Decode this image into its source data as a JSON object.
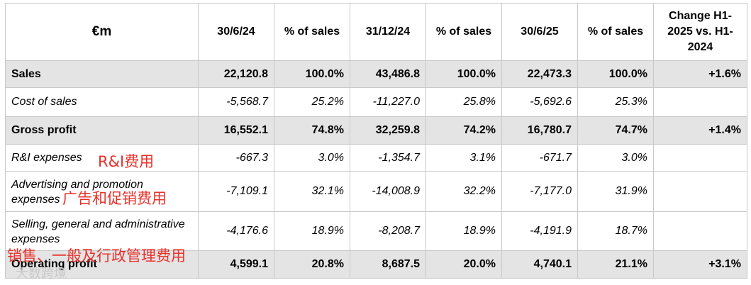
{
  "table": {
    "headers": [
      "€m",
      "30/6/24",
      "% of sales",
      "31/12/24",
      "% of sales",
      "30/6/25",
      "% of sales",
      "Change H1-2025 vs. H1-2024"
    ],
    "rows": [
      {
        "label": "Sales",
        "cells": [
          "22,120.8",
          "100.0%",
          "43,486.8",
          "100.0%",
          "22,473.3",
          "100.0%",
          "+1.6%"
        ]
      },
      {
        "label": "Cost of sales",
        "cells": [
          "-5,568.7",
          "25.2%",
          "-11,227.0",
          "25.8%",
          "-5,692.6",
          "25.3%",
          ""
        ]
      },
      {
        "label": "Gross profit",
        "cells": [
          "16,552.1",
          "74.8%",
          "32,259.8",
          "74.2%",
          "16,780.7",
          "74.7%",
          "+1.4%"
        ]
      },
      {
        "label": "R&I expenses",
        "cells": [
          "-667.3",
          "3.0%",
          "-1,354.7",
          "3.1%",
          "-671.7",
          "3.0%",
          ""
        ]
      },
      {
        "label": "Advertising and promotion expenses",
        "cells": [
          "-7,109.1",
          "32.1%",
          "-14,008.9",
          "32.2%",
          "-7,177.0",
          "31.9%",
          ""
        ]
      },
      {
        "label": "Selling, general and administrative expenses",
        "cells": [
          "-4,176.6",
          "18.9%",
          "-8,208.7",
          "18.9%",
          "-4,191.9",
          "18.7%",
          ""
        ]
      },
      {
        "label": "Operating profit",
        "cells": [
          "4,599.1",
          "20.8%",
          "8,687.5",
          "20.0%",
          "4,740.1",
          "21.1%",
          "+3.1%"
        ]
      }
    ]
  },
  "annotations": {
    "ri": "R&I费用",
    "adv": "广告和促销费用",
    "sga": "销售、一般及行政管理费用"
  },
  "watermark": "大数跨境"
}
